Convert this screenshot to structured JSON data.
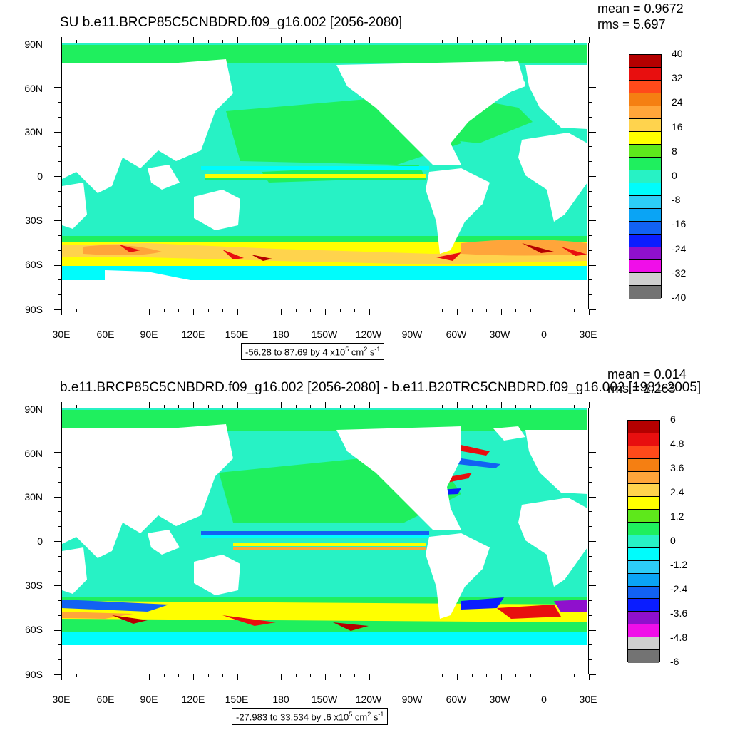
{
  "panels": [
    {
      "title": "SU b.e11.BRCP85C5CNBDRD.f09_g16.002 [2056-2080]",
      "mean": "mean = 0.9672",
      "rms": "rms = 5.697",
      "range_prefix": "-56.28 to 87.69 by 4 x10",
      "range_exp": "5",
      "range_unit": " cm",
      "range_unit_exp": "2",
      "range_tail": " s",
      "range_tail_exp": "-1",
      "lat_labels": [
        "90N",
        "60N",
        "30N",
        "0",
        "30S",
        "60S",
        "90S"
      ],
      "lon_labels": [
        "30E",
        "60E",
        "90E",
        "120E",
        "150E",
        "180",
        "150W",
        "120W",
        "90W",
        "60W",
        "30W",
        "0",
        "30E"
      ],
      "colorbar_labels": [
        "40",
        "32",
        "24",
        "16",
        "8",
        "0",
        "-8",
        "-16",
        "-24",
        "-32",
        "-40"
      ],
      "colorbar_colors": [
        "#b40000",
        "#e80f0f",
        "#ff4a1a",
        "#f57f12",
        "#ffa53a",
        "#ffd34d",
        "#ffff00",
        "#5ee81b",
        "#1fef5e",
        "#27f2c5",
        "#00fcfc",
        "#2dcdf7",
        "#0aa4f5",
        "#1262f3",
        "#0a1dff",
        "#8f10cd",
        "#f00ee9",
        "#cfcfcf",
        "#737373"
      ]
    },
    {
      "title": "b.e11.BRCP85C5CNBDRD.f09_g16.002 [2056-2080] - b.e11.B20TRC5CNBDRD.f09_g16.002 [1981-2005]",
      "mean": "mean = 0.014",
      "rms": "rms = 1.263",
      "range_prefix": "-27.983 to 33.534 by .6 x10",
      "range_exp": "5",
      "range_unit": " cm",
      "range_unit_exp": "2",
      "range_tail": " s",
      "range_tail_exp": "-1",
      "lat_labels": [
        "90N",
        "60N",
        "30N",
        "0",
        "30S",
        "60S",
        "90S"
      ],
      "lon_labels": [
        "30E",
        "60E",
        "90E",
        "120E",
        "150E",
        "180",
        "150W",
        "120W",
        "90W",
        "60W",
        "30W",
        "0",
        "30E"
      ],
      "colorbar_labels": [
        "6",
        "4.8",
        "3.6",
        "2.4",
        "1.2",
        "0",
        "-1.2",
        "-2.4",
        "-3.6",
        "-4.8",
        "-6"
      ],
      "colorbar_colors": [
        "#b40000",
        "#e80f0f",
        "#ff4a1a",
        "#f57f12",
        "#ffa53a",
        "#ffd34d",
        "#ffff00",
        "#5ee81b",
        "#1fef5e",
        "#27f2c5",
        "#00fcfc",
        "#2dcdf7",
        "#0aa4f5",
        "#1262f3",
        "#0a1dff",
        "#8f10cd",
        "#f00ee9",
        "#cfcfcf",
        "#737373"
      ]
    }
  ],
  "colors": {
    "ocean_base": "#27f2c5",
    "ocean_green": "#1fef5e",
    "cyan": "#00fcfc",
    "yellow": "#ffff00",
    "orange": "#ffa53a",
    "red": "#e80f0f",
    "dark_red": "#b40000",
    "blue": "#1262f3",
    "land": "#ffffff"
  }
}
